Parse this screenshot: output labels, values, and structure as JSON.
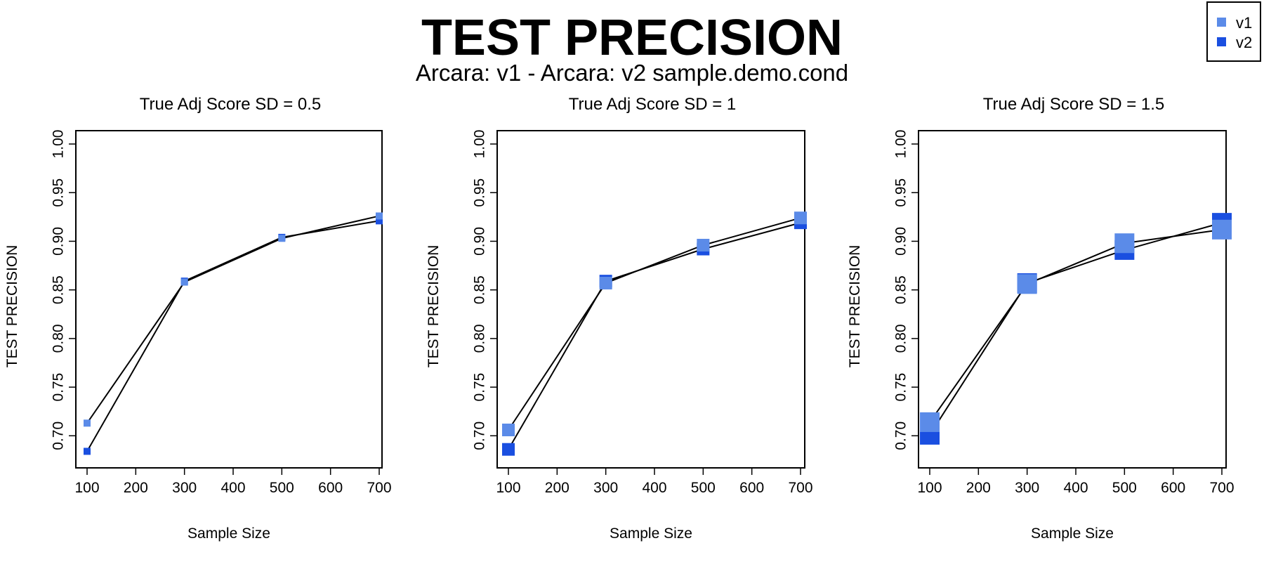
{
  "title": "TEST PRECISION",
  "subtitle": "Arcara: v1 - Arcara: v2 sample.demo.cond",
  "legend": {
    "placement": "top-right",
    "entries": [
      {
        "label": "v1",
        "color": "#5b8be8"
      },
      {
        "label": "v2",
        "color": "#1a4fe0"
      }
    ]
  },
  "chart_data": [
    {
      "type": "line",
      "title": "True Adj Score SD = 0.5",
      "xlabel": "Sample Size",
      "ylabel": "TEST PRECISION",
      "xlim": [
        100,
        700
      ],
      "ylim": [
        0.68,
        1.0
      ],
      "x_ticks": [
        "100",
        "200",
        "300",
        "400",
        "500",
        "600",
        "700"
      ],
      "y_ticks": [
        "0.70",
        "0.75",
        "0.80",
        "0.85",
        "0.90",
        "0.95",
        "1.00"
      ],
      "x": [
        100,
        300,
        500,
        700
      ],
      "series": [
        {
          "name": "v1",
          "color": "#5b8be8",
          "values": [
            0.713,
            0.858,
            0.903,
            0.926
          ],
          "marker_size": "small"
        },
        {
          "name": "v2",
          "color": "#1a4fe0",
          "values": [
            0.684,
            0.859,
            0.904,
            0.921
          ],
          "marker_size": "small"
        }
      ],
      "grid": false
    },
    {
      "type": "line",
      "title": "True Adj Score SD = 1",
      "xlabel": "Sample Size",
      "ylabel": "TEST PRECISION",
      "xlim": [
        100,
        700
      ],
      "ylim": [
        0.68,
        1.0
      ],
      "x_ticks": [
        "100",
        "200",
        "300",
        "400",
        "500",
        "600",
        "700"
      ],
      "y_ticks": [
        "0.70",
        "0.75",
        "0.80",
        "0.85",
        "0.90",
        "0.95",
        "1.00"
      ],
      "x": [
        100,
        300,
        500,
        700
      ],
      "series": [
        {
          "name": "v1",
          "color": "#5b8be8",
          "values": [
            0.706,
            0.857,
            0.896,
            0.924
          ],
          "marker_size": "medium"
        },
        {
          "name": "v2",
          "color": "#1a4fe0",
          "values": [
            0.686,
            0.859,
            0.892,
            0.919
          ],
          "marker_size": "medium"
        }
      ],
      "grid": false
    },
    {
      "type": "line",
      "title": "True Adj Score SD = 1.5",
      "xlabel": "Sample Size",
      "ylabel": "TEST PRECISION",
      "xlim": [
        100,
        700
      ],
      "ylim": [
        0.68,
        1.0
      ],
      "x_ticks": [
        "100",
        "200",
        "300",
        "400",
        "500",
        "600",
        "700"
      ],
      "y_ticks": [
        "0.70",
        "0.75",
        "0.80",
        "0.85",
        "0.90",
        "0.95",
        "1.00"
      ],
      "x": [
        100,
        300,
        500,
        700
      ],
      "series": [
        {
          "name": "v1",
          "color": "#5b8be8",
          "values": [
            0.714,
            0.856,
            0.898,
            0.912
          ],
          "marker_size": "large"
        },
        {
          "name": "v2",
          "color": "#1a4fe0",
          "values": [
            0.701,
            0.857,
            0.891,
            0.919
          ],
          "marker_size": "large"
        }
      ],
      "grid": false
    }
  ]
}
